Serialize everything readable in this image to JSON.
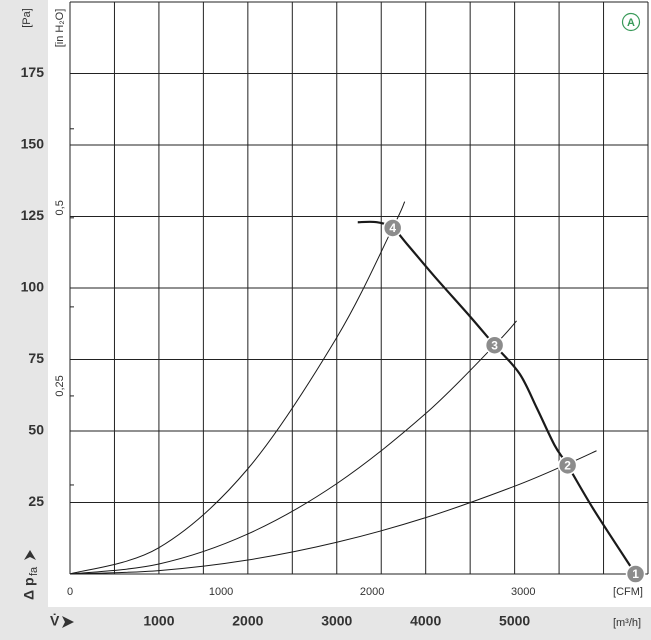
{
  "chart_data": {
    "type": "line",
    "y_unit": "[Pa]",
    "y2_unit": "[in H₂O]",
    "x_unit": "[m³/h]",
    "x2_unit": "[CFM]",
    "y_label_main": "Δ p",
    "y_label_sub": "fa",
    "x_label": "V̇",
    "badge": "A",
    "xlim": [
      0,
      6500
    ],
    "xticks": [
      1000,
      2000,
      3000,
      4000,
      5000
    ],
    "xgrid": [
      0,
      500,
      1000,
      1500,
      2000,
      2500,
      3000,
      3500,
      4000,
      4500,
      5000,
      5500,
      6000,
      6500
    ],
    "x2lim": [
      0,
      3826
    ],
    "x2ticks": [
      0,
      1000,
      2000,
      3000
    ],
    "ylim": [
      0,
      200
    ],
    "yticks": [
      25,
      50,
      75,
      100,
      125,
      150,
      175
    ],
    "ygrid": [
      0,
      25,
      50,
      75,
      100,
      125,
      150,
      175,
      200
    ],
    "y2lim": [
      0,
      0.803
    ],
    "y2ticks": [
      {
        "value": 0.25,
        "label": "0,25"
      },
      {
        "value": 0.5,
        "label": "0,5"
      }
    ],
    "y2minor": [
      0.125,
      0.375,
      0.625
    ],
    "series": [
      {
        "name": "fan curve",
        "color": "#1a1a1a",
        "x": [
          3236,
          3450,
          3629,
          3800,
          4100,
          4500,
          4775,
          5056,
          5250,
          5450,
          5596,
          5900,
          6360
        ],
        "values": [
          123,
          123,
          121,
          115,
          104,
          90,
          80,
          70,
          58,
          45,
          38,
          22,
          0
        ]
      },
      {
        "name": "system curve 4",
        "color": "#1a1a1a",
        "x": [
          0,
          1000,
          2000,
          3000,
          3629,
          3764
        ],
        "values": [
          0,
          9.2,
          36.8,
          82.7,
          121,
          130.2
        ]
      },
      {
        "name": "system curve 3",
        "color": "#1a1a1a",
        "x": [
          0,
          1000,
          2000,
          3000,
          4000,
          4775,
          5022
        ],
        "values": [
          0,
          3.5,
          14.0,
          31.6,
          56.1,
          80,
          88.5
        ]
      },
      {
        "name": "system curve 2",
        "color": "#1a1a1a",
        "x": [
          0,
          1000,
          2000,
          3000,
          4000,
          5000,
          5596,
          5921
        ],
        "values": [
          0,
          1.2,
          4.9,
          11.1,
          19.7,
          30.7,
          38.5,
          43.1
        ]
      }
    ],
    "operating_points": [
      {
        "label": "1",
        "x": 6360,
        "y": 0
      },
      {
        "label": "2",
        "x": 5596,
        "y": 38
      },
      {
        "label": "3",
        "x": 4775,
        "y": 80
      },
      {
        "label": "4",
        "x": 3629,
        "y": 121
      }
    ]
  }
}
